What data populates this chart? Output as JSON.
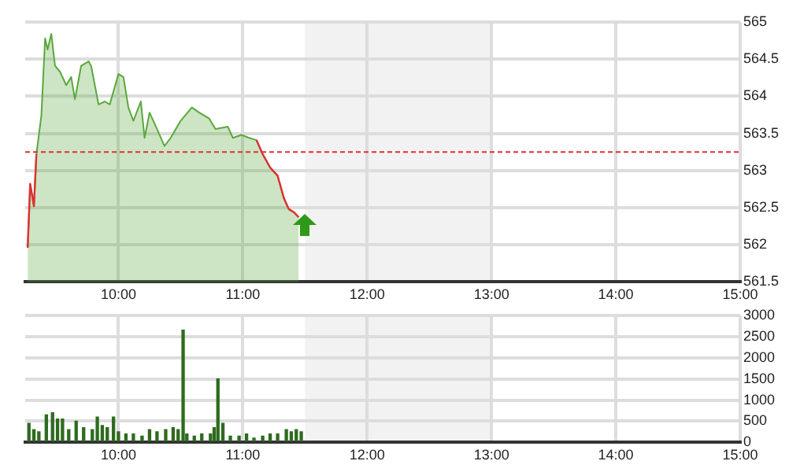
{
  "chart_data": [
    {
      "type": "area",
      "grid": true,
      "series": [
        {
          "color": "#5aa83c",
          "values": [
            561.96,
            562.82,
            562.52,
            563.22,
            563.74,
            564.78,
            564.63,
            564.84,
            564.41,
            564.33,
            564.15,
            564.26,
            563.96,
            564.41,
            564.47,
            564.41,
            563.89,
            563.93,
            563.89,
            564.3,
            564.26,
            563.85,
            563.67,
            563.93,
            563.44,
            563.78,
            563.56,
            563.33,
            563.44,
            563.67,
            563.85,
            563.78,
            563.7,
            563.56,
            563.59,
            563.44,
            563.48,
            563.44,
            563.41,
            563.22,
            563.04,
            562.93,
            562.63,
            562.48,
            562.44,
            562.37
          ]
        },
        {
          "type": "line",
          "color": "#e03030",
          "values": [
            561.96,
            562.82,
            562.52,
            563.22,
            null,
            null,
            null,
            null,
            null,
            null,
            null,
            null,
            null,
            null,
            null,
            null,
            null,
            null,
            null,
            null,
            null,
            null,
            null,
            null,
            null,
            null,
            null,
            null,
            null,
            null,
            null,
            null,
            null,
            null,
            null,
            null,
            null,
            null,
            563.41,
            563.22,
            563.04,
            562.93,
            562.63,
            562.48,
            562.44,
            562.37
          ]
        }
      ],
      "x": [
        9.27,
        9.29,
        9.32,
        9.34,
        9.38,
        9.41,
        9.43,
        9.46,
        9.49,
        9.53,
        9.58,
        9.62,
        9.65,
        9.7,
        9.76,
        9.78,
        9.84,
        9.89,
        9.93,
        10.0,
        10.04,
        10.08,
        10.12,
        10.18,
        10.21,
        10.25,
        10.31,
        10.37,
        10.42,
        10.5,
        10.59,
        10.65,
        10.73,
        10.78,
        10.88,
        10.92,
        10.99,
        11.05,
        11.11,
        11.16,
        11.22,
        11.28,
        11.33,
        11.37,
        11.41,
        11.45
      ],
      "xlim": [
        9.25,
        15
      ],
      "xticks": [
        {
          "value": 10,
          "label": "10:00"
        },
        {
          "value": 11,
          "label": "11:00"
        },
        {
          "value": 12,
          "label": "12:00"
        },
        {
          "value": 13,
          "label": "13:00"
        },
        {
          "value": 14,
          "label": "14:00"
        },
        {
          "value": 15,
          "label": "15:00"
        }
      ],
      "ylim": [
        561.5,
        565
      ],
      "yticks": [
        561.5,
        562,
        562.5,
        563,
        563.5,
        564,
        564.5,
        565
      ],
      "bands": [
        {
          "axis": "x",
          "from": 11.5,
          "to": 13,
          "color": "#f2f2f2"
        }
      ],
      "ref_lines": [
        {
          "axis": "y",
          "value": 563.25,
          "color": "#e03030",
          "line_style": "dashed"
        }
      ]
    },
    {
      "type": "bar",
      "color": "#2e6b1f",
      "grid": true,
      "x": [
        9.28,
        9.32,
        9.36,
        9.42,
        9.47,
        9.51,
        9.55,
        9.6,
        9.66,
        9.72,
        9.79,
        9.83,
        9.87,
        9.91,
        9.96,
        10.0,
        10.06,
        10.12,
        10.19,
        10.25,
        10.31,
        10.38,
        10.44,
        10.48,
        10.52,
        10.55,
        10.61,
        10.67,
        10.74,
        10.77,
        10.8,
        10.84,
        10.9,
        10.97,
        11.03,
        11.09,
        11.16,
        11.22,
        11.28,
        11.35,
        11.39,
        11.43,
        11.47
      ],
      "values": [
        450,
        300,
        250,
        650,
        700,
        550,
        550,
        300,
        500,
        350,
        300,
        600,
        400,
        350,
        600,
        250,
        200,
        200,
        150,
        300,
        250,
        300,
        350,
        300,
        2650,
        200,
        150,
        200,
        200,
        350,
        1500,
        450,
        150,
        150,
        200,
        100,
        150,
        200,
        200,
        300,
        250,
        300,
        250
      ],
      "xlim": [
        9.25,
        15
      ],
      "xticks": [
        {
          "value": 10,
          "label": "10:00"
        },
        {
          "value": 11,
          "label": "11:00"
        },
        {
          "value": 12,
          "label": "12:00"
        },
        {
          "value": 13,
          "label": "13:00"
        },
        {
          "value": 14,
          "label": "14:00"
        },
        {
          "value": 15,
          "label": "15:00"
        }
      ],
      "ylim": [
        0,
        3000
      ],
      "yticks": [
        0,
        500,
        1000,
        1500,
        2000,
        2500,
        3000
      ],
      "bands": [
        {
          "axis": "x",
          "from": 11.5,
          "to": 13,
          "color": "#f2f2f2"
        }
      ]
    }
  ]
}
